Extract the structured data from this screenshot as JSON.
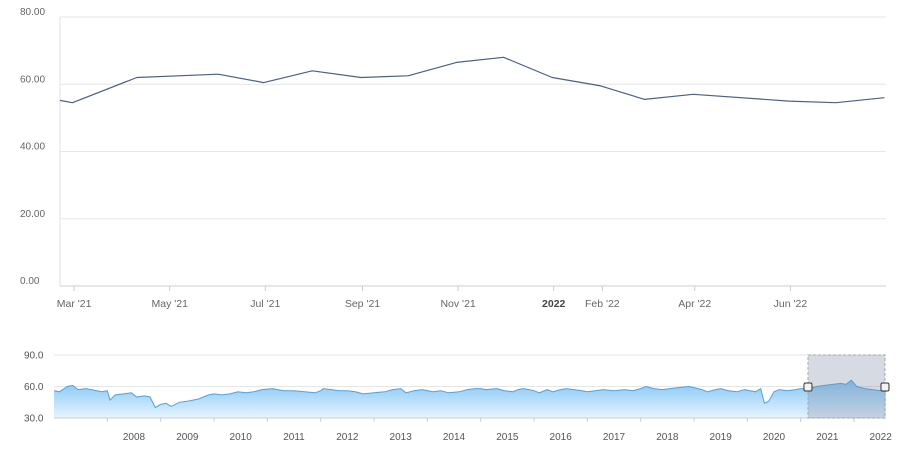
{
  "chart_data": [
    {
      "type": "line",
      "title": "",
      "xlabel": "",
      "ylabel": "",
      "ylim": [
        0,
        80
      ],
      "grid": true,
      "legend": "none",
      "y_ticks": [
        "0.00",
        "20.00",
        "40.00",
        "60.00",
        "80.00"
      ],
      "x_ticks": [
        {
          "label": "Mar '21",
          "date": "2021-03-01",
          "bold": false
        },
        {
          "label": "May '21",
          "date": "2021-05-01",
          "bold": false
        },
        {
          "label": "Jul '21",
          "date": "2021-07-01",
          "bold": false
        },
        {
          "label": "Sep '21",
          "date": "2021-09-01",
          "bold": false
        },
        {
          "label": "Nov '21",
          "date": "2021-11-01",
          "bold": false
        },
        {
          "label": "2022",
          "date": "2022-01-01",
          "bold": true
        },
        {
          "label": "Feb '22",
          "date": "2022-02-01",
          "bold": false
        },
        {
          "label": "Apr '22",
          "date": "2022-04-01",
          "bold": false
        },
        {
          "label": "Jun '22",
          "date": "2022-06-01",
          "bold": false
        }
      ],
      "x_range": [
        "2021-02-20",
        "2022-08-01"
      ],
      "series": [
        {
          "color": "#4a6282",
          "points": [
            [
              "2021-02-20",
              55.2
            ],
            [
              "2021-02-28",
              54.5
            ],
            [
              "2021-04-10",
              62.0
            ],
            [
              "2021-06-01",
              63.0
            ],
            [
              "2021-06-30",
              60.5
            ],
            [
              "2021-07-31",
              64.0
            ],
            [
              "2021-08-31",
              62.0
            ],
            [
              "2021-09-30",
              62.5
            ],
            [
              "2021-10-31",
              66.5
            ],
            [
              "2021-11-30",
              68.0
            ],
            [
              "2021-12-31",
              62.0
            ],
            [
              "2022-01-31",
              59.5
            ],
            [
              "2022-02-28",
              55.5
            ],
            [
              "2022-03-31",
              57.0
            ],
            [
              "2022-05-31",
              55.0
            ],
            [
              "2022-06-30",
              54.5
            ],
            [
              "2022-07-31",
              56.0
            ]
          ]
        }
      ]
    },
    {
      "type": "area",
      "role": "navigator",
      "title": "",
      "ylim": [
        30,
        90
      ],
      "y_ticks": [
        "30.0",
        "60.0",
        "90.0"
      ],
      "x_ticks": [
        "2008",
        "2009",
        "2010",
        "2011",
        "2012",
        "2013",
        "2014",
        "2015",
        "2016",
        "2017",
        "2018",
        "2019",
        "2020",
        "2021",
        "2022"
      ],
      "x_range": [
        2007.0,
        2022.6
      ],
      "selected_range": [
        "2021-02-20",
        "2022-08-01"
      ],
      "series": [
        {
          "color": "#4da3e0",
          "points": [
            [
              2007.0,
              56
            ],
            [
              2007.1,
              55
            ],
            [
              2007.25,
              60
            ],
            [
              2007.35,
              61
            ],
            [
              2007.45,
              57
            ],
            [
              2007.6,
              58
            ],
            [
              2007.8,
              56
            ],
            [
              2007.9,
              55
            ],
            [
              2008.0,
              56
            ],
            [
              2008.05,
              47
            ],
            [
              2008.15,
              52
            ],
            [
              2008.3,
              53
            ],
            [
              2008.45,
              54
            ],
            [
              2008.55,
              50
            ],
            [
              2008.7,
              51
            ],
            [
              2008.8,
              50
            ],
            [
              2008.9,
              40
            ],
            [
              2009.0,
              43
            ],
            [
              2009.1,
              44
            ],
            [
              2009.2,
              41
            ],
            [
              2009.35,
              45
            ],
            [
              2009.5,
              46
            ],
            [
              2009.7,
              48
            ],
            [
              2009.9,
              52
            ],
            [
              2010.0,
              53
            ],
            [
              2010.15,
              52
            ],
            [
              2010.3,
              53
            ],
            [
              2010.45,
              55
            ],
            [
              2010.6,
              54
            ],
            [
              2010.75,
              55
            ],
            [
              2010.9,
              57
            ],
            [
              2011.1,
              58
            ],
            [
              2011.3,
              56
            ],
            [
              2011.5,
              56
            ],
            [
              2011.7,
              55
            ],
            [
              2011.9,
              54
            ],
            [
              2012.0,
              56
            ],
            [
              2012.05,
              58
            ],
            [
              2012.2,
              57
            ],
            [
              2012.35,
              56
            ],
            [
              2012.5,
              56
            ],
            [
              2012.65,
              55
            ],
            [
              2012.8,
              53
            ],
            [
              2013.0,
              54
            ],
            [
              2013.2,
              55
            ],
            [
              2013.35,
              57
            ],
            [
              2013.5,
              58
            ],
            [
              2013.6,
              54
            ],
            [
              2013.75,
              56
            ],
            [
              2013.9,
              57
            ],
            [
              2014.1,
              55
            ],
            [
              2014.25,
              56
            ],
            [
              2014.4,
              54
            ],
            [
              2014.6,
              55
            ],
            [
              2014.75,
              57
            ],
            [
              2014.9,
              58
            ],
            [
              2015.0,
              58
            ],
            [
              2015.1,
              57
            ],
            [
              2015.3,
              58
            ],
            [
              2015.45,
              56
            ],
            [
              2015.6,
              55
            ],
            [
              2015.7,
              57
            ],
            [
              2015.8,
              58
            ],
            [
              2015.9,
              57
            ],
            [
              2016.0,
              56
            ],
            [
              2016.1,
              54
            ],
            [
              2016.25,
              57
            ],
            [
              2016.35,
              55
            ],
            [
              2016.5,
              57
            ],
            [
              2016.6,
              58
            ],
            [
              2016.75,
              57
            ],
            [
              2016.9,
              56
            ],
            [
              2017.0,
              55
            ],
            [
              2017.15,
              56
            ],
            [
              2017.3,
              57
            ],
            [
              2017.5,
              56
            ],
            [
              2017.7,
              57
            ],
            [
              2017.85,
              56
            ],
            [
              2018.0,
              58
            ],
            [
              2018.1,
              60
            ],
            [
              2018.25,
              58
            ],
            [
              2018.4,
              57
            ],
            [
              2018.55,
              58
            ],
            [
              2018.7,
              59
            ],
            [
              2018.9,
              60
            ],
            [
              2019.0,
              59
            ],
            [
              2019.15,
              57
            ],
            [
              2019.25,
              55
            ],
            [
              2019.4,
              57
            ],
            [
              2019.5,
              58
            ],
            [
              2019.65,
              56
            ],
            [
              2019.8,
              55
            ],
            [
              2019.95,
              57
            ],
            [
              2020.05,
              56
            ],
            [
              2020.15,
              55
            ],
            [
              2020.25,
              58
            ],
            [
              2020.32,
              44
            ],
            [
              2020.4,
              46
            ],
            [
              2020.5,
              55
            ],
            [
              2020.6,
              57
            ],
            [
              2020.75,
              56
            ],
            [
              2020.9,
              57
            ],
            [
              2021.0,
              58
            ],
            [
              2021.15,
              58
            ],
            [
              2021.3,
              60
            ],
            [
              2021.45,
              61
            ],
            [
              2021.6,
              62
            ],
            [
              2021.75,
              63
            ],
            [
              2021.85,
              62
            ],
            [
              2021.95,
              66
            ],
            [
              2022.05,
              60
            ],
            [
              2022.2,
              58
            ],
            [
              2022.35,
              57
            ],
            [
              2022.5,
              56
            ],
            [
              2022.6,
              55
            ]
          ]
        }
      ]
    }
  ]
}
